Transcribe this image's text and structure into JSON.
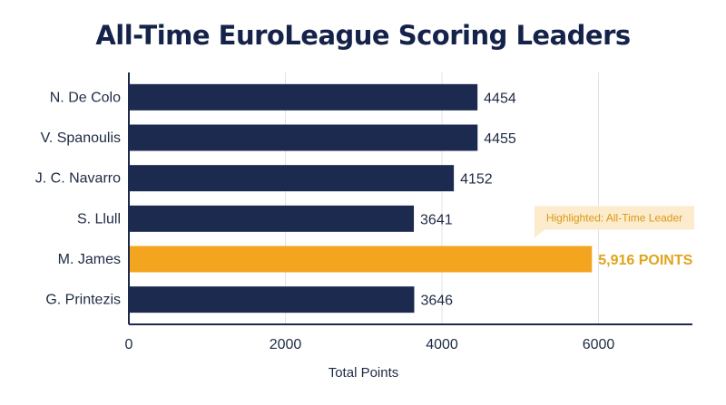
{
  "title": "All-Time EuroLeague Scoring Leaders",
  "chart_data": {
    "type": "bar",
    "orientation": "horizontal",
    "title": "All-Time EuroLeague Scoring Leaders",
    "categories": [
      "N. De Colo",
      "V. Spanoulis",
      "J. C. Navarro",
      "S. Llull",
      "M. James",
      "G. Printezis"
    ],
    "values": [
      4454,
      4455,
      4152,
      3641,
      5916,
      3646
    ],
    "value_labels": [
      "4454",
      "4455",
      "4152",
      "3641",
      "5,916 POINTS",
      "3646"
    ],
    "highlight_index": 4,
    "xlabel": "Total Points",
    "ylabel": "",
    "xlim": [
      0,
      7200
    ],
    "xticks": [
      0,
      2000,
      4000,
      6000
    ],
    "xtick_labels": [
      "0",
      "2000",
      "4000",
      "6000"
    ],
    "grid": "vertical",
    "colors": {
      "bar": "#1b2a4e",
      "highlight": "#f3a51f",
      "callout_bg": "#fcebcd",
      "callout_text": "#d99a14",
      "grid": "#e3e3e3",
      "axis": "#1b2a4e"
    },
    "annotation": {
      "text": "Highlighted: All-Time Leader",
      "target_index": 4
    }
  }
}
